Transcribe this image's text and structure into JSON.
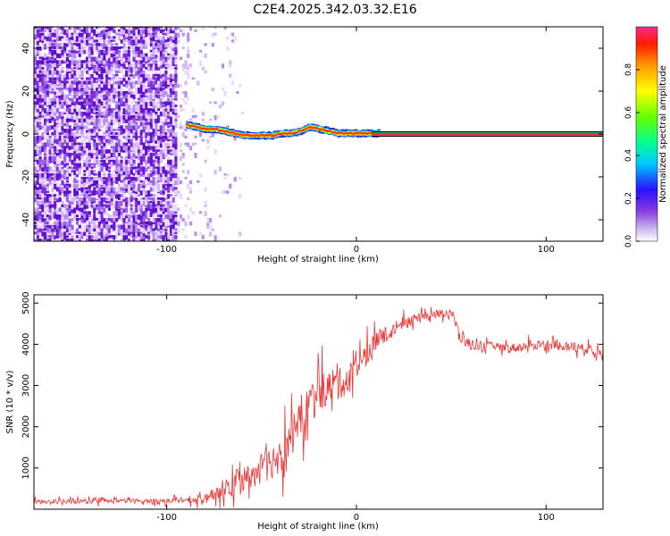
{
  "title": "C2E4.2025.342.03.32.E16",
  "chart_data": [
    {
      "type": "heatmap",
      "xlabel": "Height of straight line (km)",
      "ylabel": "Frequency (Hz)",
      "xlim": [
        -170,
        130
      ],
      "ylim": [
        -50,
        50
      ],
      "xticks": [
        -100,
        0,
        100
      ],
      "yticks": [
        -40,
        -20,
        0,
        20,
        40
      ],
      "noise_region_x": [
        -170,
        -60
      ],
      "dominant_line": {
        "x": [
          -90,
          -85,
          -80,
          -75,
          -70,
          -65,
          -60,
          -55,
          -50,
          -45,
          -40,
          -35,
          -30,
          -25,
          -20,
          -15,
          -10,
          -5,
          0,
          5,
          10,
          130
        ],
        "freq": [
          4,
          3,
          2,
          2,
          1,
          0,
          -1,
          -1,
          -1,
          -1,
          0,
          0,
          1,
          3,
          2,
          1,
          0,
          0,
          0,
          0,
          0,
          0
        ]
      },
      "colorbar": {
        "label": "Normalized spectral amplitude",
        "range": [
          0,
          1
        ],
        "ticks": [
          "0.0",
          "0.2",
          "0.4",
          "0.6",
          "0.8"
        ],
        "colors": [
          "#ffffff",
          "#b08ae8",
          "#7a1fd6",
          "#1b12ff",
          "#00cfff",
          "#00ff80",
          "#7fff00",
          "#ffff00",
          "#ff9900",
          "#ff1a00",
          "#ff2080"
        ]
      }
    },
    {
      "type": "line",
      "xlabel": "Height of straight line (km)",
      "ylabel": "SNR (10 * v/v)",
      "xlim": [
        -170,
        130
      ],
      "ylim": [
        0,
        5200
      ],
      "xticks": [
        -100,
        0,
        100
      ],
      "yticks": [
        1000,
        2000,
        3000,
        4000,
        5000
      ],
      "color": "#ee3333",
      "x": [
        -170,
        -140,
        -110,
        -90,
        -80,
        -75,
        -70,
        -65,
        -60,
        -55,
        -50,
        -45,
        -40,
        -35,
        -30,
        -25,
        -20,
        -15,
        -10,
        -5,
        0,
        5,
        10,
        15,
        20,
        25,
        30,
        35,
        40,
        45,
        50,
        55,
        60,
        70,
        80,
        90,
        100,
        110,
        120,
        130
      ],
      "mean": [
        180,
        190,
        200,
        210,
        240,
        350,
        500,
        620,
        700,
        820,
        1000,
        1150,
        1350,
        1700,
        2200,
        2600,
        2800,
        2950,
        3000,
        3150,
        3400,
        3700,
        4000,
        4200,
        4350,
        4500,
        4600,
        4700,
        4750,
        4750,
        4800,
        4150,
        4000,
        3950,
        3900,
        3950,
        4000,
        3950,
        3900,
        3800
      ],
      "amp": [
        110,
        110,
        110,
        120,
        200,
        350,
        550,
        650,
        650,
        700,
        750,
        850,
        950,
        1000,
        1050,
        1050,
        950,
        900,
        800,
        700,
        650,
        600,
        550,
        450,
        350,
        300,
        250,
        220,
        200,
        200,
        220,
        300,
        250,
        230,
        230,
        230,
        230,
        230,
        230,
        230
      ]
    }
  ]
}
